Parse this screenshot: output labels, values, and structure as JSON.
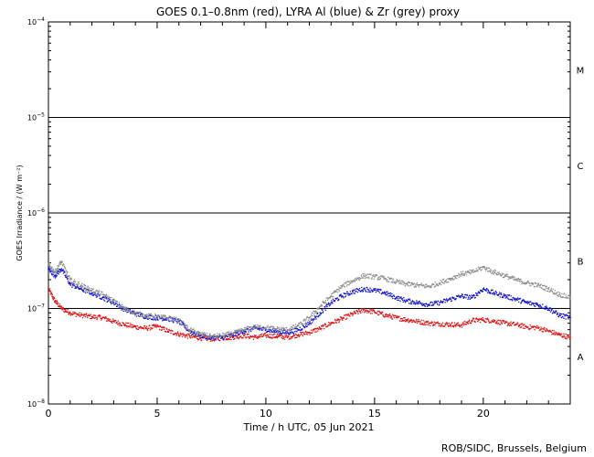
{
  "chart_data": {
    "type": "scatter",
    "title": "GOES 0.1–0.8nm (red), LYRA Al (blue) & Zr (grey) proxy",
    "xlabel": "Time / h UTC, 05 Jun 2021",
    "ylabel": "GOES Irradiance / (W m⁻²)",
    "xlim": [
      0,
      24
    ],
    "ylim": [
      1e-08,
      0.0001
    ],
    "yscale": "log",
    "xticks": [
      0,
      5,
      10,
      15,
      20
    ],
    "yticks": [
      {
        "value": 1e-08,
        "base": "10",
        "exp": "−8"
      },
      {
        "value": 1e-07,
        "base": "10",
        "exp": "−7"
      },
      {
        "value": 1e-06,
        "base": "10",
        "exp": "−6"
      },
      {
        "value": 1e-05,
        "base": "10",
        "exp": "−5"
      },
      {
        "value": 0.0001,
        "base": "10",
        "exp": "−4"
      }
    ],
    "class_lines": [
      1e-07,
      1e-06,
      1e-05
    ],
    "class_labels": [
      {
        "label": "A",
        "value": 3.16e-08
      },
      {
        "label": "B",
        "value": 3.16e-07
      },
      {
        "label": "C",
        "value": 3.16e-06
      },
      {
        "label": "M",
        "value": 3.16e-05
      }
    ],
    "series": [
      {
        "name": "GOES 0.1-0.8nm",
        "color": "#e01010",
        "x": [
          0,
          0.3,
          0.6,
          1,
          1.5,
          2,
          2.5,
          3,
          3.5,
          4,
          4.5,
          5,
          5.5,
          6,
          6.5,
          7,
          7.5,
          8,
          8.5,
          9,
          9.5,
          10,
          10.5,
          11,
          11.5,
          12,
          12.5,
          13,
          13.5,
          14,
          14.5,
          15,
          15.5,
          16,
          16.5,
          17,
          17.5,
          18,
          18.5,
          19,
          19.5,
          20,
          20.5,
          21,
          21.5,
          22,
          22.5,
          23,
          23.5,
          24
        ],
        "values": [
          1.6e-07,
          1.2e-07,
          1e-07,
          9e-08,
          8.5e-08,
          8.2e-08,
          8e-08,
          7.3e-08,
          6.8e-08,
          6.4e-08,
          6.2e-08,
          6.5e-08,
          5.8e-08,
          5.4e-08,
          5.1e-08,
          4.9e-08,
          4.8e-08,
          4.9e-08,
          5e-08,
          5.2e-08,
          5e-08,
          5.2e-08,
          5.1e-08,
          5e-08,
          5.3e-08,
          5.6e-08,
          6.2e-08,
          7e-08,
          7.8e-08,
          8.8e-08,
          9.6e-08,
          9.2e-08,
          8.5e-08,
          8e-08,
          7.6e-08,
          7.3e-08,
          7e-08,
          6.9e-08,
          6.8e-08,
          6.7e-08,
          7.5e-08,
          7.6e-08,
          7.4e-08,
          7e-08,
          6.8e-08,
          6.4e-08,
          6.3e-08,
          5.8e-08,
          5.3e-08,
          5e-08
        ]
      },
      {
        "name": "LYRA Al proxy",
        "color": "#1010d0",
        "x": [
          0,
          0.3,
          0.6,
          1,
          1.5,
          2,
          2.5,
          3,
          3.5,
          4,
          4.5,
          5,
          5.5,
          6,
          6.5,
          7,
          7.5,
          8,
          8.5,
          9,
          9.5,
          10,
          10.5,
          11,
          11.5,
          12,
          12.5,
          13,
          13.5,
          14,
          14.5,
          15,
          15.5,
          16,
          16.5,
          17,
          17.5,
          18,
          18.5,
          19,
          19.5,
          20,
          20.5,
          21,
          21.5,
          22,
          22.5,
          23,
          23.5,
          24
        ],
        "values": [
          2.6e-07,
          2.2e-07,
          2.6e-07,
          1.8e-07,
          1.6e-07,
          1.45e-07,
          1.3e-07,
          1.15e-07,
          9.8e-08,
          8.8e-08,
          8.2e-08,
          8e-08,
          7.8e-08,
          7.3e-08,
          5.8e-08,
          5.2e-08,
          4.9e-08,
          5e-08,
          5.3e-08,
          5.8e-08,
          6.2e-08,
          6e-08,
          5.7e-08,
          5.6e-08,
          6e-08,
          7e-08,
          9e-08,
          1.15e-07,
          1.35e-07,
          1.5e-07,
          1.6e-07,
          1.55e-07,
          1.45e-07,
          1.3e-07,
          1.2e-07,
          1.15e-07,
          1.1e-07,
          1.15e-07,
          1.25e-07,
          1.35e-07,
          1.3e-07,
          1.6e-07,
          1.45e-07,
          1.35e-07,
          1.25e-07,
          1.15e-07,
          1.1e-07,
          1e-07,
          8.5e-08,
          8e-08
        ]
      },
      {
        "name": "LYRA Zr proxy",
        "color": "#8c8c8c",
        "x": [
          0,
          0.3,
          0.6,
          1,
          1.5,
          2,
          2.5,
          3,
          3.5,
          4,
          4.5,
          5,
          5.5,
          6,
          6.5,
          7,
          7.5,
          8,
          8.5,
          9,
          9.5,
          10,
          10.5,
          11,
          11.5,
          12,
          12.5,
          13,
          13.5,
          14,
          14.5,
          15,
          15.5,
          16,
          16.5,
          17,
          17.5,
          18,
          18.5,
          19,
          19.5,
          20,
          20.5,
          21,
          21.5,
          22,
          22.5,
          23,
          23.5,
          24
        ],
        "values": [
          2.9e-07,
          2.4e-07,
          3.1e-07,
          2e-07,
          1.75e-07,
          1.55e-07,
          1.4e-07,
          1.2e-07,
          1e-07,
          9e-08,
          8.4e-08,
          8.2e-08,
          8e-08,
          7.5e-08,
          6e-08,
          5.4e-08,
          5.1e-08,
          5.2e-08,
          5.5e-08,
          6e-08,
          6.4e-08,
          6.3e-08,
          6.1e-08,
          6e-08,
          6.6e-08,
          8e-08,
          1.05e-07,
          1.35e-07,
          1.7e-07,
          1.95e-07,
          2.2e-07,
          2.15e-07,
          2.05e-07,
          1.9e-07,
          1.8e-07,
          1.75e-07,
          1.7e-07,
          1.85e-07,
          2.05e-07,
          2.3e-07,
          2.4e-07,
          2.7e-07,
          2.4e-07,
          2.2e-07,
          2e-07,
          1.85e-07,
          1.75e-07,
          1.6e-07,
          1.4e-07,
          1.3e-07
        ]
      }
    ]
  },
  "credit": "ROB/SIDC, Brussels, Belgium"
}
